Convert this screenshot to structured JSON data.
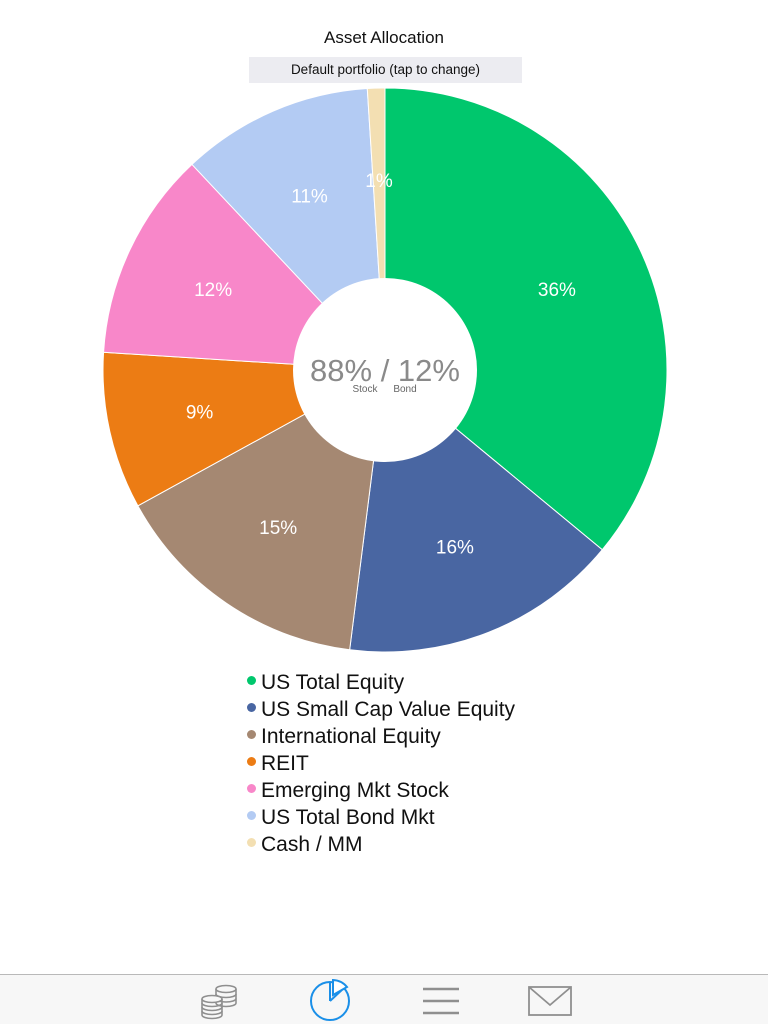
{
  "header": {
    "title": "Asset Allocation",
    "portfolio_button": "Default portfolio (tap to change)"
  },
  "chart_data": {
    "type": "pie",
    "donut": true,
    "center_text": {
      "value": "88% / 12%",
      "stock_label": "Stock",
      "bond_label": "Bond"
    },
    "slices": [
      {
        "name": "US Total Equity",
        "value": 36,
        "label": "36%",
        "color": "#00c76d"
      },
      {
        "name": "US Small Cap Value Equity",
        "value": 16,
        "label": "16%",
        "color": "#4966a2"
      },
      {
        "name": "International Equity",
        "value": 15,
        "label": "15%",
        "color": "#a58872"
      },
      {
        "name": "REIT",
        "value": 9,
        "label": "9%",
        "color": "#ec7c14"
      },
      {
        "name": "Emerging Mkt Stock",
        "value": 12,
        "label": "12%",
        "color": "#f887c9"
      },
      {
        "name": "US Total Bond Mkt",
        "value": 11,
        "label": "11%",
        "color": "#b3cbf3"
      },
      {
        "name": "Cash / MM",
        "value": 1,
        "label": "1%",
        "color": "#f3dfb2"
      }
    ]
  },
  "tabbar": {
    "tabs": [
      {
        "icon": "coins-stack-icon",
        "selected": false
      },
      {
        "icon": "pie-chart-icon",
        "selected": true
      },
      {
        "icon": "list-menu-icon",
        "selected": false
      },
      {
        "icon": "mail-envelope-icon",
        "selected": false
      }
    ],
    "selected_color": "#1a8fe8",
    "unselected_color": "#8f8f8f"
  }
}
